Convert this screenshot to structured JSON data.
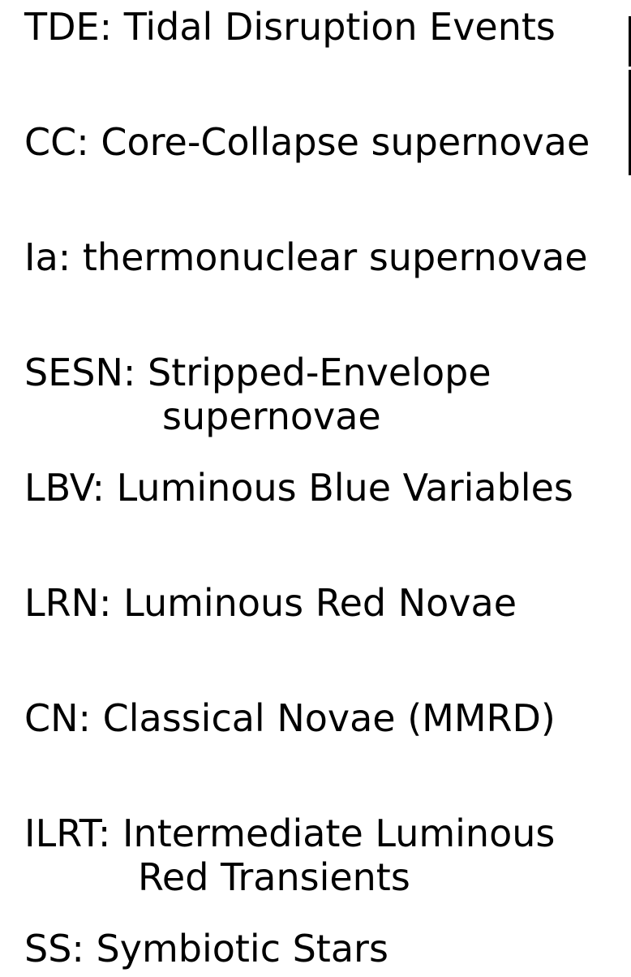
{
  "legend": {
    "entries": [
      {
        "line1": "TDE: Tidal Disruption Events"
      },
      {
        "line1": "CC: Core-Collapse supernovae"
      },
      {
        "line1": "Ia: thermonuclear supernovae"
      },
      {
        "line1": "SESN: Stripped-Envelope",
        "line2": "supernovae"
      },
      {
        "line1": "LBV: Luminous Blue Variables"
      },
      {
        "line1": "LRN: Luminous Red Novae"
      },
      {
        "line1": "CN: Classical Novae (MMRD)"
      },
      {
        "line1": "ILRT: Intermediate Luminous",
        "line2": "Red Transients"
      },
      {
        "line1": "SS: Symbiotic Stars"
      }
    ]
  }
}
